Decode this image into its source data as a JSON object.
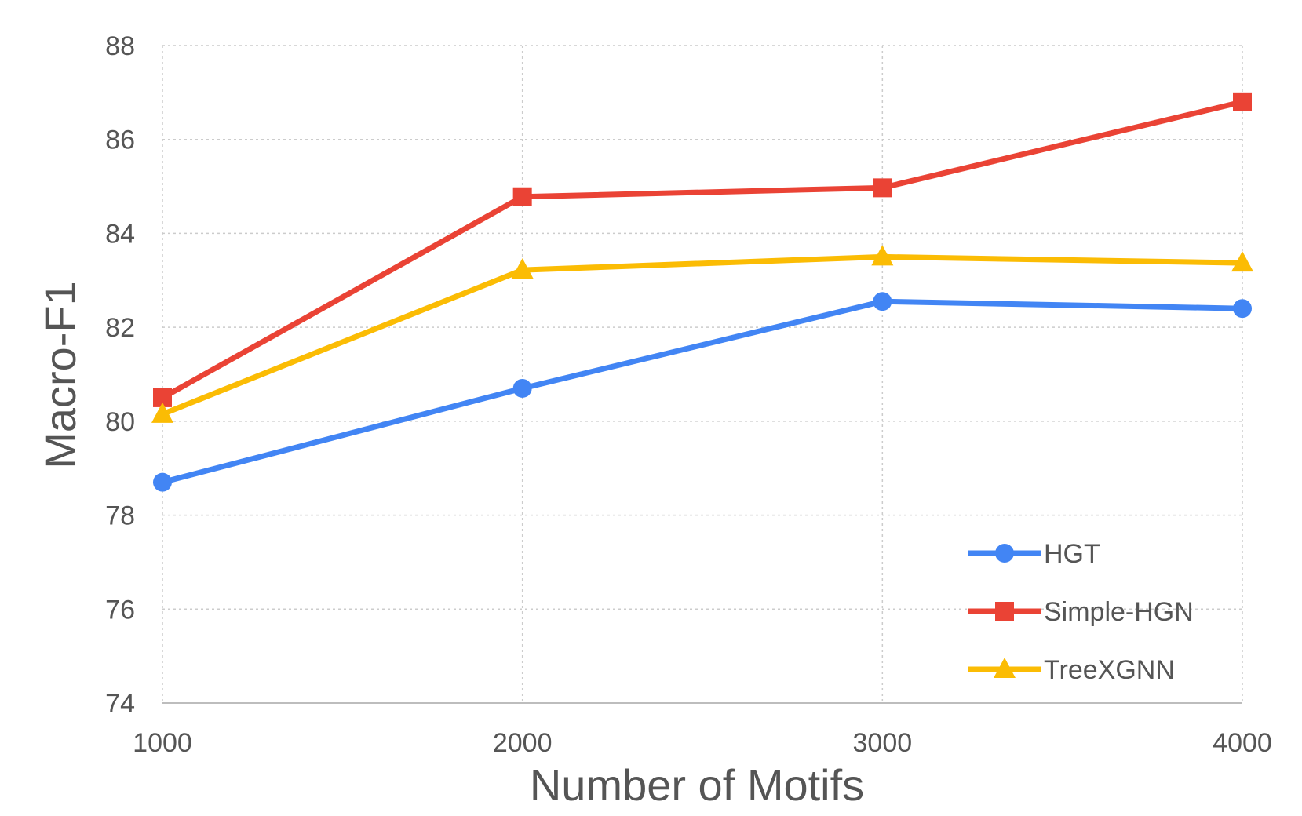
{
  "chart_data": {
    "type": "line",
    "title": "",
    "xlabel": "Number of Motifs",
    "ylabel": "Macro-F1",
    "x": [
      1000,
      2000,
      3000,
      4000
    ],
    "x_tick_labels": [
      "1000",
      "2000",
      "3000",
      "4000"
    ],
    "ylim": [
      74,
      88
    ],
    "y_ticks": [
      74,
      76,
      78,
      80,
      82,
      84,
      86,
      88
    ],
    "y_tick_labels": [
      "74",
      "76",
      "78",
      "80",
      "82",
      "84",
      "86",
      "88"
    ],
    "grid": true,
    "legend_position": "bottom-right",
    "series": [
      {
        "name": "HGT",
        "values": [
          78.7,
          80.7,
          82.55,
          82.4
        ],
        "color": "#4285f4",
        "marker": "circle"
      },
      {
        "name": "Simple-HGN",
        "values": [
          80.5,
          84.78,
          84.97,
          86.8
        ],
        "color": "#ea4335",
        "marker": "square"
      },
      {
        "name": "TreeXGNN",
        "values": [
          80.15,
          83.22,
          83.5,
          83.37
        ],
        "color": "#fbbc04",
        "marker": "triangle"
      }
    ]
  }
}
